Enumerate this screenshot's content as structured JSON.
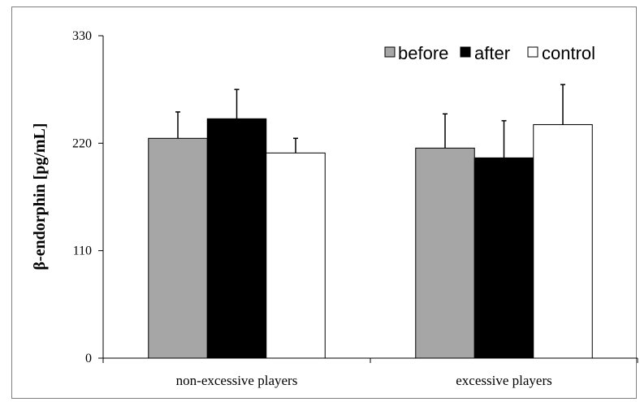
{
  "chart_data": {
    "type": "bar",
    "categories": [
      "non-excessive players",
      "excessive players"
    ],
    "series": [
      {
        "name": "before",
        "values": [
          225,
          215
        ],
        "errors": [
          27,
          35
        ],
        "color": "#a6a6a6"
      },
      {
        "name": "after",
        "values": [
          245,
          205
        ],
        "errors": [
          30,
          38
        ],
        "color": "#000000"
      },
      {
        "name": "control",
        "values": [
          210,
          239
        ],
        "errors": [
          15,
          41
        ],
        "color": "#ffffff"
      }
    ],
    "title": "",
    "xlabel": "",
    "ylabel": "β-endorphin [pg/mL]",
    "ylim": [
      0,
      330
    ],
    "yticks": [
      0,
      110,
      220,
      330
    ],
    "grid": false,
    "legend": "top-right"
  }
}
